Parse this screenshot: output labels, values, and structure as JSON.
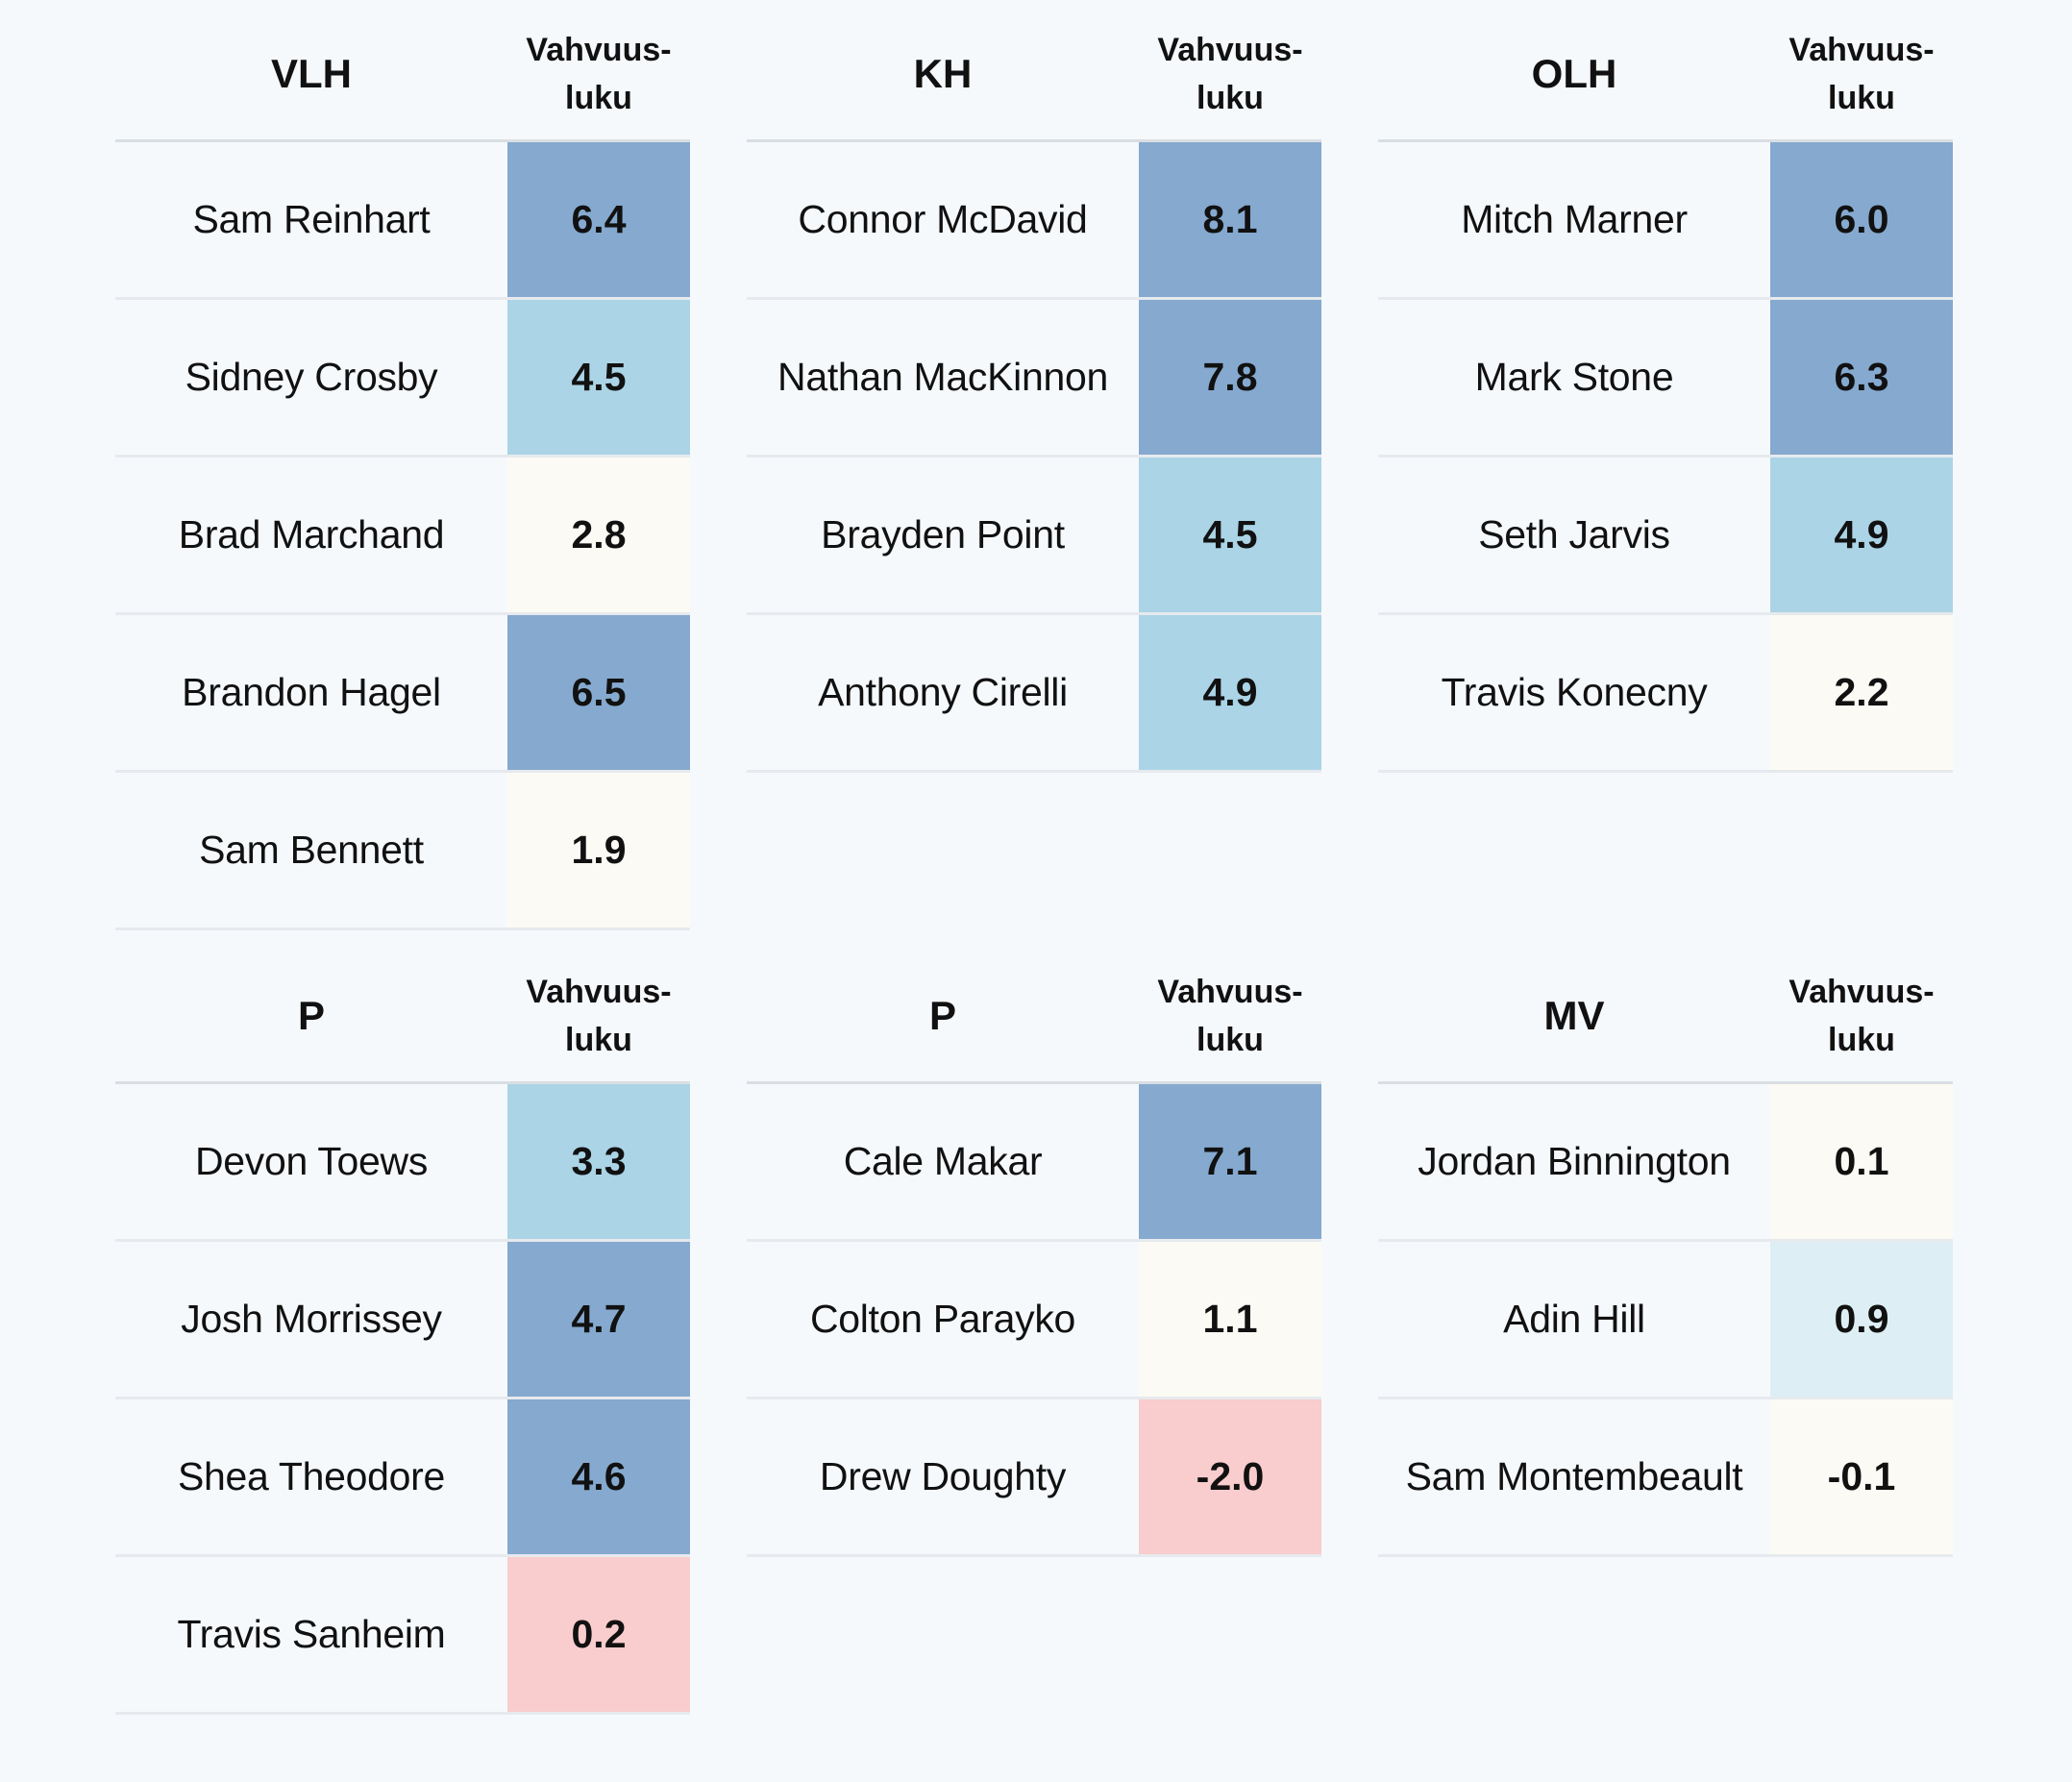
{
  "column_label": "Vahvuus-\nluku",
  "colors": {
    "high": "#85a9cf",
    "mid": "#abd4e6",
    "low_mid": "#ddeef5",
    "neutral": "#fcfaf4",
    "negative": "#f9cccd"
  },
  "panels": [
    {
      "title": "VLH",
      "rows": [
        {
          "name": "Sam Reinhart",
          "value": "6.4",
          "color": "#85a9cf"
        },
        {
          "name": "Sidney Crosby",
          "value": "4.5",
          "color": "#abd4e6"
        },
        {
          "name": "Brad Marchand",
          "value": "2.8",
          "color": "#fcfaf4"
        },
        {
          "name": "Brandon Hagel",
          "value": "6.5",
          "color": "#85a9cf"
        },
        {
          "name": "Sam Bennett",
          "value": "1.9",
          "color": "#fcfaf4"
        }
      ]
    },
    {
      "title": "KH",
      "rows": [
        {
          "name": "Connor McDavid",
          "value": "8.1",
          "color": "#85a9cf"
        },
        {
          "name": "Nathan MacKinnon",
          "value": "7.8",
          "color": "#85a9cf"
        },
        {
          "name": "Brayden Point",
          "value": "4.5",
          "color": "#abd4e6"
        },
        {
          "name": "Anthony Cirelli",
          "value": "4.9",
          "color": "#abd4e6"
        }
      ]
    },
    {
      "title": "OLH",
      "rows": [
        {
          "name": "Mitch Marner",
          "value": "6.0",
          "color": "#85a9cf"
        },
        {
          "name": "Mark Stone",
          "value": "6.3",
          "color": "#85a9cf"
        },
        {
          "name": "Seth Jarvis",
          "value": "4.9",
          "color": "#abd4e6"
        },
        {
          "name": "Travis Konecny",
          "value": "2.2",
          "color": "#fcfaf4"
        }
      ]
    },
    {
      "title": "P",
      "rows": [
        {
          "name": "Devon Toews",
          "value": "3.3",
          "color": "#abd4e6"
        },
        {
          "name": "Josh Morrissey",
          "value": "4.7",
          "color": "#85a9cf"
        },
        {
          "name": "Shea Theodore",
          "value": "4.6",
          "color": "#85a9cf"
        },
        {
          "name": "Travis Sanheim",
          "value": "0.2",
          "color": "#f9cccd"
        }
      ]
    },
    {
      "title": "P",
      "rows": [
        {
          "name": "Cale Makar",
          "value": "7.1",
          "color": "#85a9cf"
        },
        {
          "name": "Colton Parayko",
          "value": "1.1",
          "color": "#fcfaf4"
        },
        {
          "name": "Drew Doughty",
          "value": "-2.0",
          "color": "#f9cccd"
        }
      ]
    },
    {
      "title": "MV",
      "rows": [
        {
          "name": "Jordan Binnington",
          "value": "0.1",
          "color": "#fcfaf4"
        },
        {
          "name": "Adin Hill",
          "value": "0.9",
          "color": "#ddeef5"
        },
        {
          "name": "Sam Montembeault",
          "value": "-0.1",
          "color": "#fcfaf4"
        }
      ]
    }
  ]
}
